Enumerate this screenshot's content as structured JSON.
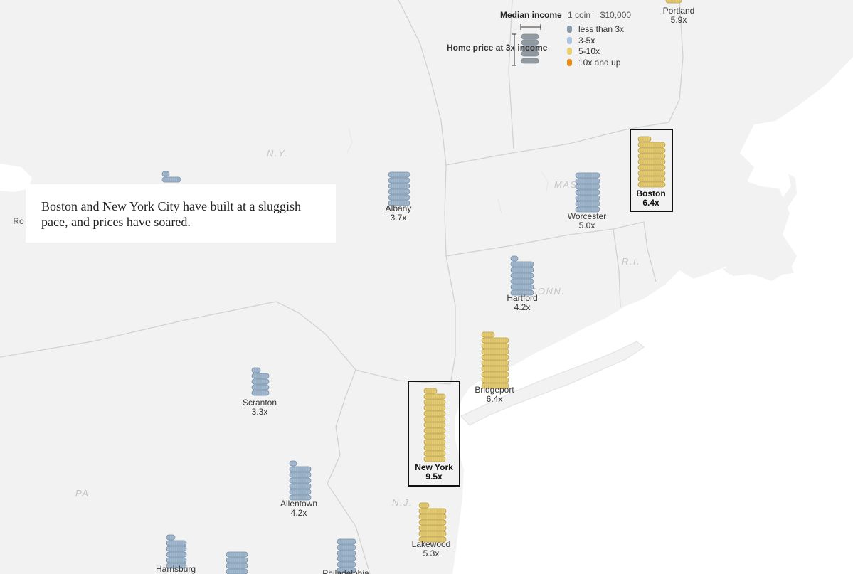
{
  "callout": {
    "text": "Boston and New York City have built at a sluggish pace, and prices have soared."
  },
  "legend": {
    "median_income": "Median income",
    "coin_scale": "1 coin = $10,000",
    "home_price": "Home price at 3x income",
    "categories": [
      {
        "label": "less than 3x",
        "color": "#8a9bab"
      },
      {
        "label": "3-5x",
        "color": "#a9c4dc"
      },
      {
        "label": "5-10x",
        "color": "#e7cf6e"
      },
      {
        "label": "10x and up",
        "color": "#e48b1a"
      }
    ]
  },
  "state_labels": [
    "N.Y.",
    "MASS.",
    "CONN.",
    "R.I.",
    "PA.",
    "N.J."
  ],
  "cities": [
    {
      "name": "Portland",
      "ratio": "5.9x",
      "category": "5-10x",
      "highlight": false
    },
    {
      "name": "Albany",
      "ratio": "3.7x",
      "category": "3-5x",
      "highlight": false
    },
    {
      "name": "Worcester",
      "ratio": "5.0x",
      "category": "3-5x",
      "highlight": false
    },
    {
      "name": "Boston",
      "ratio": "6.4x",
      "category": "5-10x",
      "highlight": true
    },
    {
      "name": "Hartford",
      "ratio": "4.2x",
      "category": "3-5x",
      "highlight": false
    },
    {
      "name": "Bridgeport",
      "ratio": "6.4x",
      "category": "5-10x",
      "highlight": false
    },
    {
      "name": "Scranton",
      "ratio": "3.3x",
      "category": "3-5x",
      "highlight": false
    },
    {
      "name": "New York",
      "ratio": "9.5x",
      "category": "5-10x",
      "highlight": true
    },
    {
      "name": "Allentown",
      "ratio": "4.2x",
      "category": "3-5x",
      "highlight": false
    },
    {
      "name": "Lakewood",
      "ratio": "5.3x",
      "category": "5-10x",
      "highlight": false
    },
    {
      "name": "Harrisburg",
      "ratio": "",
      "category": "3-5x",
      "highlight": false
    },
    {
      "name": "Philadelphia",
      "ratio": "",
      "category": "3-5x",
      "highlight": false
    }
  ],
  "colors": {
    "blue_coin": "#a3b9cf",
    "gold_coin": "#e5cc77",
    "land": "#f1f1f1",
    "water": "#ffffff",
    "border": "#d4d4d4"
  }
}
